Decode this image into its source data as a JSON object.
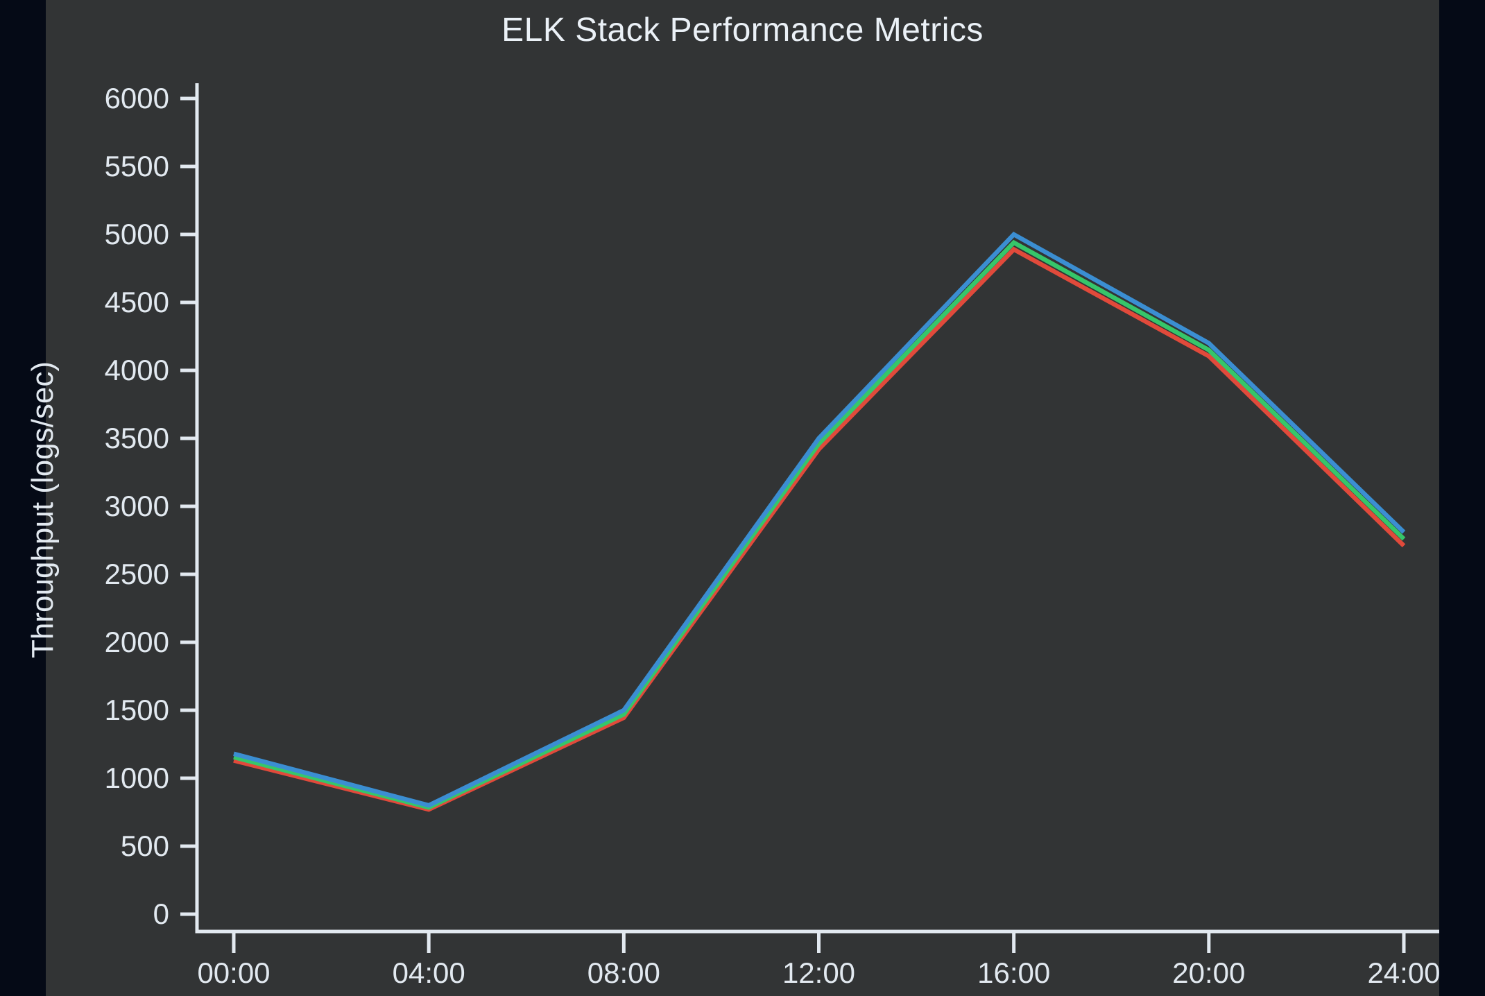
{
  "figure": {
    "background_color": "#323435",
    "page_background_color": "#050a16",
    "text_color": "#e2e9f0"
  },
  "chart_data": {
    "type": "line",
    "title": "ELK Stack Performance Metrics",
    "xlabel": "",
    "ylabel": "Throughput (logs/sec)",
    "categories": [
      "00:00",
      "04:00",
      "08:00",
      "12:00",
      "16:00",
      "20:00",
      "24:00"
    ],
    "series": [
      {
        "name": "blue",
        "color": "#3b8ed2",
        "values": [
          1180,
          800,
          1500,
          3500,
          5000,
          4200,
          2810
        ]
      },
      {
        "name": "green",
        "color": "#36c66a",
        "values": [
          1155,
          785,
          1470,
          3460,
          4940,
          4150,
          2760
        ]
      },
      {
        "name": "red",
        "color": "#e14a3b",
        "values": [
          1130,
          770,
          1445,
          3420,
          4890,
          4105,
          2710
        ]
      }
    ],
    "ylim": [
      0,
      6000
    ],
    "y_ticks": [
      0,
      500,
      1000,
      1500,
      2000,
      2500,
      3000,
      3500,
      4000,
      4500,
      5000,
      5500,
      6000
    ],
    "grid": false,
    "legend": "none"
  }
}
